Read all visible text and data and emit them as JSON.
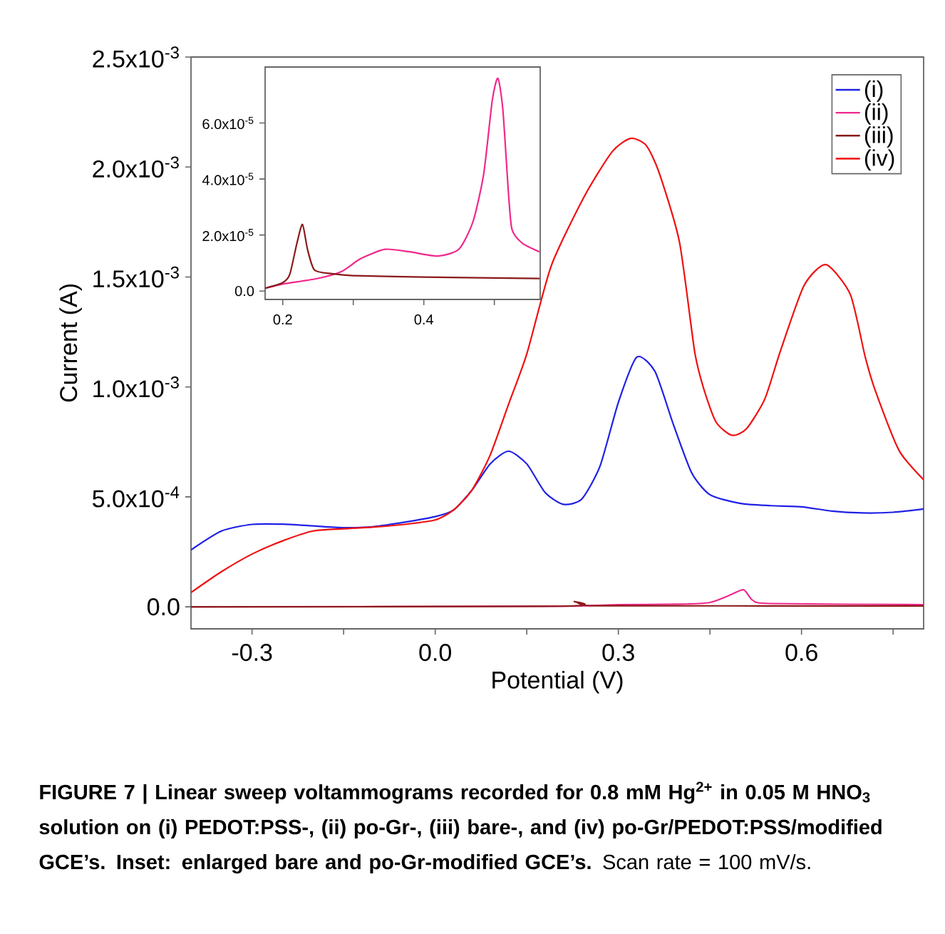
{
  "chart_data": [
    {
      "type": "line",
      "xlabel": "Potential (V)",
      "ylabel": "Current (A)",
      "legend": "top right",
      "xlim": [
        -0.4,
        0.8
      ],
      "ylim": [
        -0.0001,
        0.0025
      ],
      "xticks": [
        {
          "value": -0.3,
          "label": "-0.3"
        },
        {
          "value": -0.15,
          "label": null
        },
        {
          "value": 0,
          "label": "0.0"
        },
        {
          "value": 0.15,
          "label": null
        },
        {
          "value": 0.3,
          "label": "0.3"
        },
        {
          "value": 0.45,
          "label": null
        },
        {
          "value": 0.6,
          "label": "0.6"
        },
        {
          "value": 0.75,
          "label": null
        }
      ],
      "yticks": [
        {
          "value": 0,
          "label": "0.0"
        },
        {
          "value": 0.0005,
          "label": "5.0x10$^{-4}$"
        },
        {
          "value": 0.001,
          "label": "1.0x10$^{-3}$"
        },
        {
          "value": 0.0015,
          "label": "1.5x10$^{-3}$"
        },
        {
          "value": 0.002,
          "label": "2.0x10$^{-3}$"
        },
        {
          "value": 0.0025,
          "label": "2.5x10$^{-3}$"
        }
      ],
      "series": [
        {
          "name": "(i)",
          "color": "#2020e6",
          "x": [
            -0.4,
            -0.35,
            -0.3,
            -0.25,
            -0.2,
            -0.15,
            -0.1,
            -0.05,
            0,
            0.03,
            0.06,
            0.09,
            0.12,
            0.15,
            0.18,
            0.21,
            0.24,
            0.27,
            0.3,
            0.33,
            0.36,
            0.39,
            0.42,
            0.45,
            0.5,
            0.55,
            0.6,
            0.65,
            0.7,
            0.75,
            0.8
          ],
          "values": [
            0.000259,
            0.000345,
            0.000375,
            0.000376,
            0.000368,
            0.00036,
            0.000365,
            0.000385,
            0.00041,
            0.00044,
            0.00053,
            0.00065,
            0.000708,
            0.00065,
            0.00052,
            0.000466,
            0.00049,
            0.00064,
            0.00093,
            0.001135,
            0.00107,
            0.00083,
            0.00061,
            0.00051,
            0.00047,
            0.00046,
            0.000455,
            0.000435,
            0.000427,
            0.00043,
            0.000445
          ]
        },
        {
          "name": "(ii)",
          "color": "#f0288c",
          "x": [
            -0.4,
            0.2,
            0.3,
            0.4,
            0.45,
            0.48,
            0.505,
            0.52,
            0.55,
            0.8
          ],
          "values": [
            0,
            3e-06,
            1e-05,
            1.2e-05,
            2e-05,
            5e-05,
            7.8e-05,
            3e-05,
            1.5e-05,
            1e-05
          ]
        },
        {
          "name": "(iii)",
          "color": "#8b1a1a",
          "x": [
            -0.4,
            0.21,
            0.228,
            0.245,
            0.3,
            0.8
          ],
          "values": [
            0,
            3e-06,
            2.4e-05,
            7e-06,
            5e-06,
            4e-06
          ]
        },
        {
          "name": "(iv)",
          "color": "#f01010",
          "x": [
            -0.4,
            -0.35,
            -0.3,
            -0.25,
            -0.2,
            -0.15,
            -0.1,
            -0.05,
            0,
            0.03,
            0.06,
            0.09,
            0.12,
            0.15,
            0.19,
            0.245,
            0.29,
            0.32,
            0.345,
            0.366,
            0.4,
            0.425,
            0.44,
            0.46,
            0.486,
            0.51,
            0.54,
            0.565,
            0.604,
            0.64,
            0.68,
            0.704,
            0.72,
            0.76,
            0.8
          ],
          "values": [
            6.5e-05,
            0.00016,
            0.00024,
            0.0003,
            0.000345,
            0.000355,
            0.000363,
            0.000375,
            0.000395,
            0.00044,
            0.00053,
            0.00069,
            0.00092,
            0.00115,
            0.00155,
            0.00187,
            0.00207,
            0.00213,
            0.0021,
            0.00198,
            0.00166,
            0.00116,
            0.00099,
            0.00084,
            0.00078,
            0.00081,
            0.000946,
            0.00116,
            0.00146,
            0.001556,
            0.00142,
            0.00114,
            0.00099,
            0.00071,
            0.000578
          ]
        }
      ],
      "annotations": [
        "FIGURE 7 | Linear sweep voltammograms recorded for 0.8 mM Hg$^{2+}$ in 0.05 M HNO$_{3}$ solution on (i) PEDOT:PSS-, (ii) po-Gr-, (iii) bare-, and (iv) po-Gr/PEDOT:PSS/modified GCE’s. Inset: enlarged bare and po-Gr-modified GCE’s.",
        "Scan rate = 100 mV/s."
      ]
    },
    {
      "type": "line",
      "xlim": [
        0.175,
        0.565
      ],
      "ylim": [
        -3e-06,
        8e-05
      ],
      "xticks": [
        {
          "value": 0.2,
          "label": "0.2"
        },
        {
          "value": 0.3,
          "label": null
        },
        {
          "value": 0.4,
          "label": "0.4"
        },
        {
          "value": 0.5,
          "label": null
        }
      ],
      "yticks": [
        {
          "value": 0,
          "label": "0.0"
        },
        {
          "value": 2e-05,
          "label": "2.0x10$^{-5}$"
        },
        {
          "value": 4e-05,
          "label": "4.0x10$^{-5}$"
        },
        {
          "value": 6e-05,
          "label": "6.0x10$^{-5}$"
        }
      ],
      "series": [
        {
          "color": "#f0288c",
          "x": [
            0.175,
            0.2,
            0.25,
            0.283,
            0.31,
            0.345,
            0.38,
            0.42,
            0.45,
            0.47,
            0.485,
            0.497,
            0.505,
            0.512,
            0.52,
            0.525,
            0.54,
            0.564
          ],
          "values": [
            1e-06,
            2.5e-06,
            4.5e-06,
            6.9e-06,
            1.15e-05,
            1.49e-05,
            1.4e-05,
            1.25e-05,
            1.5e-05,
            2.5e-05,
            4.2e-05,
            6.8e-05,
            7.6e-05,
            6.5e-05,
            3.5e-05,
            2.2e-05,
            1.7e-05,
            1.4e-05
          ]
        },
        {
          "color": "#8b1a1a",
          "x": [
            0.175,
            0.2,
            0.21,
            0.22,
            0.228,
            0.235,
            0.245,
            0.27,
            0.3,
            0.4,
            0.564
          ],
          "values": [
            1e-06,
            3e-06,
            6e-06,
            1.7e-05,
            2.38e-05,
            1.5e-05,
            7.5e-06,
            6.2e-06,
            5.5e-06,
            5e-06,
            4.5e-06
          ]
        }
      ]
    }
  ]
}
